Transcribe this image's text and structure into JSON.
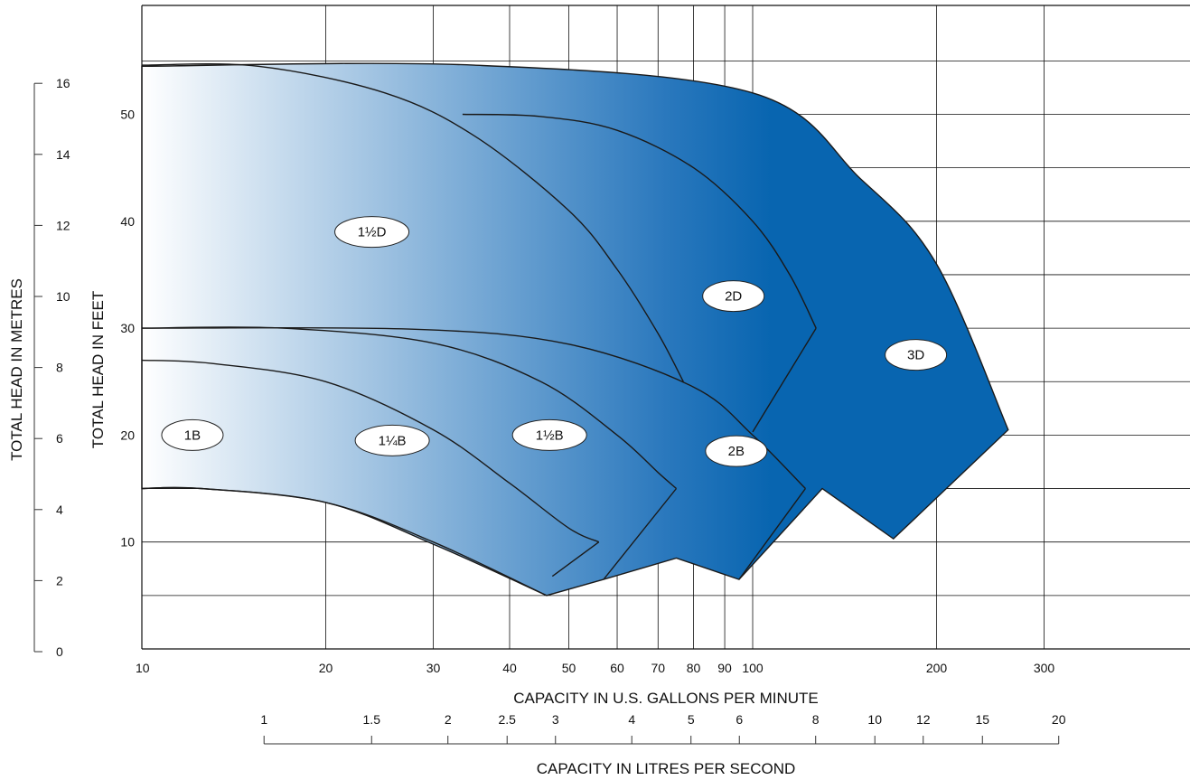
{
  "chart_data": {
    "type": "area",
    "x_scale": "log",
    "xlabel": "CAPACITY IN U.S. GALLONS PER MINUTE",
    "ylabel": "TOTAL HEAD IN FEET",
    "xlim": [
      10,
      400
    ],
    "ylim": [
      0,
      60
    ],
    "x_ticks": [
      10,
      20,
      30,
      40,
      50,
      60,
      70,
      80,
      90,
      100,
      200,
      300
    ],
    "y_ticks": [
      10,
      20,
      30,
      40,
      50
    ],
    "grid": true,
    "secondary_y": {
      "label": "TOTAL HEAD IN METRES",
      "ticks": [
        0,
        2,
        4,
        6,
        8,
        10,
        12,
        14,
        16
      ]
    },
    "secondary_x": {
      "label": "CAPACITY IN LITRES PER SECOND",
      "ticks": [
        1,
        1.5,
        2,
        2.5,
        3,
        4,
        5,
        6,
        8,
        10,
        12,
        15,
        20
      ]
    },
    "zones": [
      {
        "name": "1B",
        "label_at": [
          12.1,
          20
        ]
      },
      {
        "name": "1¼B",
        "label_at": [
          25.7,
          19.5
        ]
      },
      {
        "name": "1½B",
        "label_at": [
          46.5,
          20
        ]
      },
      {
        "name": "2B",
        "label_at": [
          94,
          18.5
        ]
      },
      {
        "name": "1½D",
        "label_at": [
          23.8,
          39
        ]
      },
      {
        "name": "2D",
        "label_at": [
          93,
          33
        ]
      },
      {
        "name": "3D",
        "label_at": [
          185,
          27.5
        ]
      }
    ],
    "coverage_outline": [
      [
        10,
        54.5
      ],
      [
        35,
        54.6
      ],
      [
        100,
        52
      ],
      [
        150,
        44
      ],
      [
        200,
        36
      ],
      [
        262,
        20.5
      ],
      [
        170,
        10.3
      ],
      [
        130,
        15
      ],
      [
        95,
        6.5
      ],
      [
        75,
        8.5
      ],
      [
        57,
        6.5
      ],
      [
        46,
        5
      ],
      [
        30,
        9.8
      ],
      [
        20,
        13.7
      ],
      [
        12.5,
        15
      ],
      [
        10,
        15
      ]
    ],
    "curves": [
      {
        "name": "1B / 1¼B boundary",
        "points": [
          [
            10,
            15
          ],
          [
            12.5,
            15
          ],
          [
            20,
            13.7
          ],
          [
            30,
            10
          ],
          [
            46,
            5
          ]
        ]
      },
      {
        "name": "1¼B / 1½B boundary",
        "points": [
          [
            10,
            27
          ],
          [
            13,
            26.7
          ],
          [
            20,
            25
          ],
          [
            30,
            20.5
          ],
          [
            40,
            15.5
          ],
          [
            50,
            11.3
          ],
          [
            56,
            10
          ]
        ]
      },
      {
        "name": "1¼B / 1½B lower end",
        "points": [
          [
            56,
            10
          ],
          [
            47,
            6.8
          ]
        ]
      },
      {
        "name": "1½B / 2B boundary",
        "points": [
          [
            10,
            30
          ],
          [
            17,
            30
          ],
          [
            30,
            28.6
          ],
          [
            45,
            25
          ],
          [
            60,
            20
          ],
          [
            70,
            16.5
          ],
          [
            75,
            15
          ]
        ]
      },
      {
        "name": "1½B / 2B lower end",
        "points": [
          [
            75,
            15
          ],
          [
            57,
            6.5
          ]
        ]
      },
      {
        "name": "2B / 3D boundary",
        "points": [
          [
            10,
            30
          ],
          [
            28,
            29.9
          ],
          [
            50,
            28.5
          ],
          [
            80,
            24.5
          ],
          [
            100,
            20
          ],
          [
            122,
            15
          ]
        ]
      },
      {
        "name": "2B / 3D lower end",
        "points": [
          [
            122,
            15
          ],
          [
            95,
            6.5
          ]
        ]
      },
      {
        "name": "1½D / 2D boundary",
        "points": [
          [
            10,
            54.6
          ],
          [
            15.5,
            54.5
          ],
          [
            25,
            52
          ],
          [
            35,
            48
          ],
          [
            50,
            41
          ],
          [
            60,
            35.5
          ],
          [
            70,
            29.5
          ],
          [
            77,
            25
          ]
        ]
      },
      {
        "name": "2D / 3D boundary",
        "points": [
          [
            33.5,
            50
          ],
          [
            45,
            49.8
          ],
          [
            60,
            48.5
          ],
          [
            80,
            45
          ],
          [
            100,
            40
          ],
          [
            115,
            35
          ],
          [
            127,
            30
          ]
        ]
      },
      {
        "name": "2D / 3D lower end",
        "points": [
          [
            127,
            30
          ],
          [
            100,
            20.3
          ]
        ]
      }
    ],
    "fill_gradient": [
      "#ffffff",
      "#2a78bd",
      "#0865b0",
      "#0865b0"
    ]
  }
}
